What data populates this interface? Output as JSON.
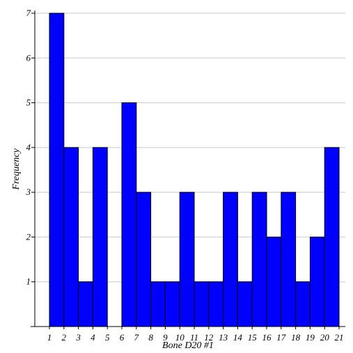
{
  "chart_data": {
    "type": "bar",
    "title": "",
    "xlabel": "Bone D20 #1",
    "ylabel": "Frequency",
    "x_ticks": [
      "1",
      "2",
      "3",
      "4",
      "5",
      "6",
      "7",
      "8",
      "9",
      "10",
      "11",
      "12",
      "13",
      "14",
      "15",
      "16",
      "17",
      "18",
      "19",
      "20",
      "21"
    ],
    "y_ticks": [
      "1",
      "2",
      "3",
      "4",
      "5",
      "6",
      "7"
    ],
    "ylim": [
      0,
      7
    ],
    "bins": [
      {
        "from": 1,
        "to": 2,
        "value": 7
      },
      {
        "from": 2,
        "to": 3,
        "value": 4
      },
      {
        "from": 3,
        "to": 4,
        "value": 1
      },
      {
        "from": 4,
        "to": 5,
        "value": 4
      },
      {
        "from": 5,
        "to": 6,
        "value": 0
      },
      {
        "from": 6,
        "to": 7,
        "value": 5
      },
      {
        "from": 7,
        "to": 8,
        "value": 3
      },
      {
        "from": 8,
        "to": 9,
        "value": 1
      },
      {
        "from": 9,
        "to": 10,
        "value": 1
      },
      {
        "from": 10,
        "to": 11,
        "value": 3
      },
      {
        "from": 11,
        "to": 12,
        "value": 1
      },
      {
        "from": 12,
        "to": 13,
        "value": 1
      },
      {
        "from": 13,
        "to": 14,
        "value": 3
      },
      {
        "from": 14,
        "to": 15,
        "value": 1
      },
      {
        "from": 15,
        "to": 16,
        "value": 3
      },
      {
        "from": 16,
        "to": 17,
        "value": 2
      },
      {
        "from": 17,
        "to": 18,
        "value": 3
      },
      {
        "from": 18,
        "to": 19,
        "value": 1
      },
      {
        "from": 19,
        "to": 20,
        "value": 2
      },
      {
        "from": 20,
        "to": 21,
        "value": 4
      }
    ],
    "bar_color": "#0000ff",
    "grid": true,
    "grid_color": "#c8c8c8"
  }
}
